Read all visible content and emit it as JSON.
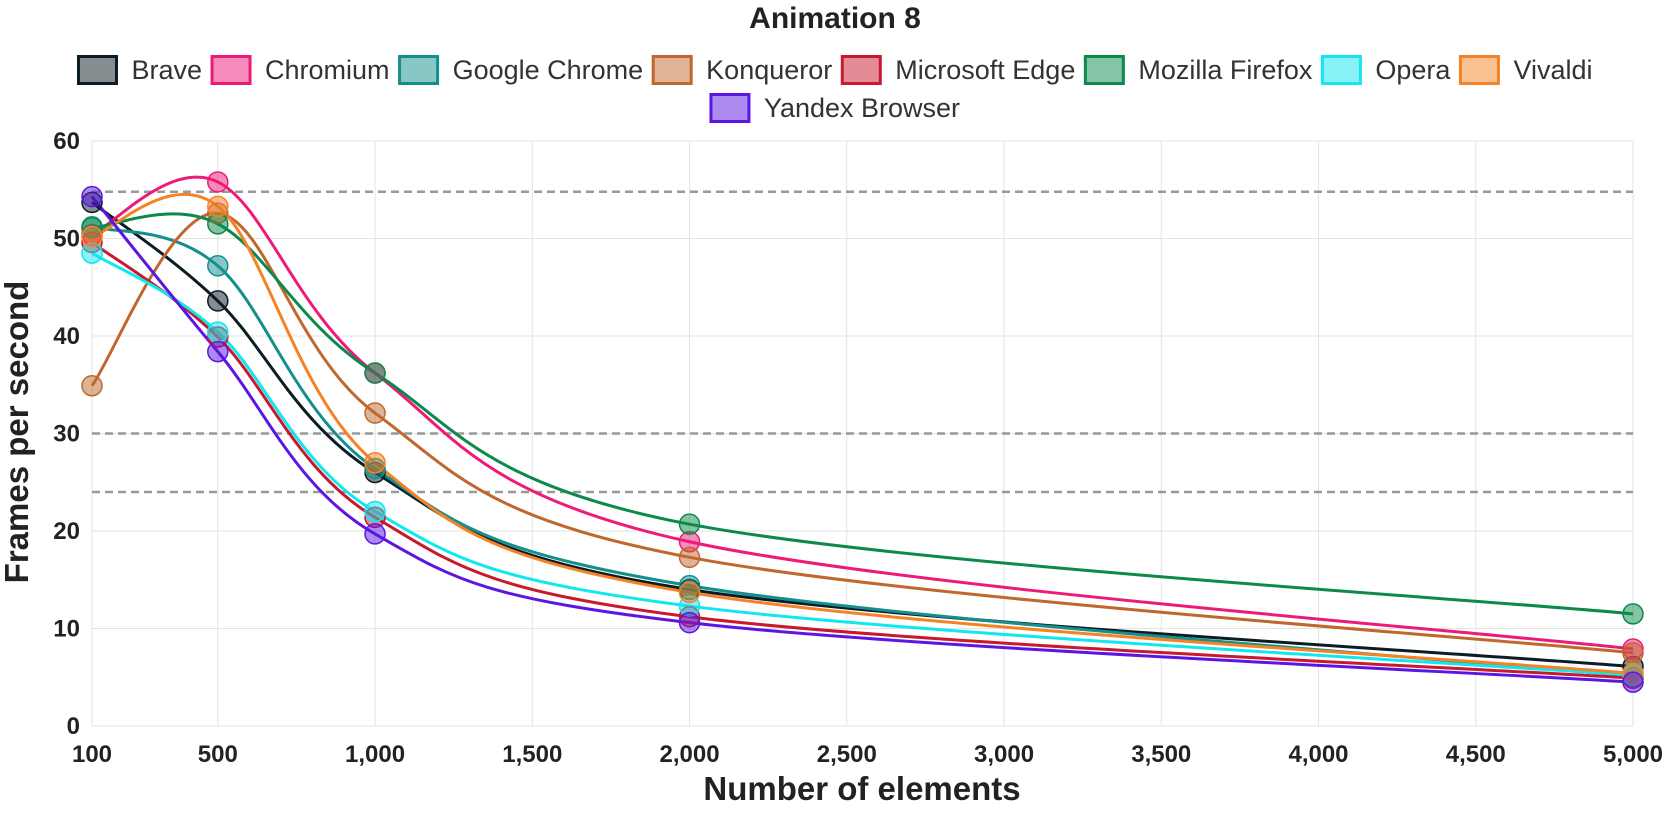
{
  "chart_data": {
    "type": "line",
    "title": "Animation 8",
    "xlabel": "Number of elements",
    "ylabel": "Frames per second",
    "x": [
      100,
      500,
      1000,
      2000,
      5000
    ],
    "xlim": [
      100,
      5000
    ],
    "ylim": [
      0,
      60
    ],
    "x_ticks": [
      100,
      500,
      1000,
      1500,
      2000,
      2500,
      3000,
      3500,
      4000,
      4500,
      5000
    ],
    "x_tick_labels": [
      "100",
      "500",
      "1,000",
      "1,500",
      "2,000",
      "2,500",
      "3,000",
      "3,500",
      "4,000",
      "4,500",
      "5,000"
    ],
    "y_ticks": [
      0,
      10,
      20,
      30,
      40,
      50,
      60
    ],
    "y_tick_labels": [
      "0",
      "10",
      "20",
      "30",
      "40",
      "50",
      "60"
    ],
    "reference_lines": [
      54.8,
      30,
      24
    ],
    "grid": true,
    "legend_position": "top",
    "series": [
      {
        "name": "Brave",
        "color": "#0b1c24",
        "values": [
          53.7,
          43.6,
          26.0,
          14.0,
          6.1
        ]
      },
      {
        "name": "Chromium",
        "color": "#ee1a78",
        "values": [
          50.4,
          55.8,
          36.2,
          18.9,
          7.9
        ]
      },
      {
        "name": "Google Chrome",
        "color": "#13908e",
        "values": [
          51.2,
          47.2,
          26.4,
          14.4,
          5.1
        ]
      },
      {
        "name": "Konqueror",
        "color": "#c0672e",
        "values": [
          34.9,
          52.6,
          32.1,
          17.3,
          7.5
        ]
      },
      {
        "name": "Microsoft Edge",
        "color": "#c8192e",
        "values": [
          49.6,
          39.9,
          21.4,
          11.2,
          4.9
        ]
      },
      {
        "name": "Mozilla Firefox",
        "color": "#0c8a4b",
        "values": [
          51.1,
          51.5,
          36.2,
          20.7,
          11.5
        ]
      },
      {
        "name": "Opera",
        "color": "#12e6ef",
        "values": [
          48.5,
          40.4,
          22.0,
          12.3,
          5.2
        ]
      },
      {
        "name": "Vivaldi",
        "color": "#f58326",
        "values": [
          50.2,
          53.3,
          27.0,
          13.7,
          5.4
        ]
      },
      {
        "name": "Yandex Browser",
        "color": "#5c16e2",
        "values": [
          54.3,
          38.4,
          19.7,
          10.6,
          4.5
        ]
      }
    ]
  }
}
